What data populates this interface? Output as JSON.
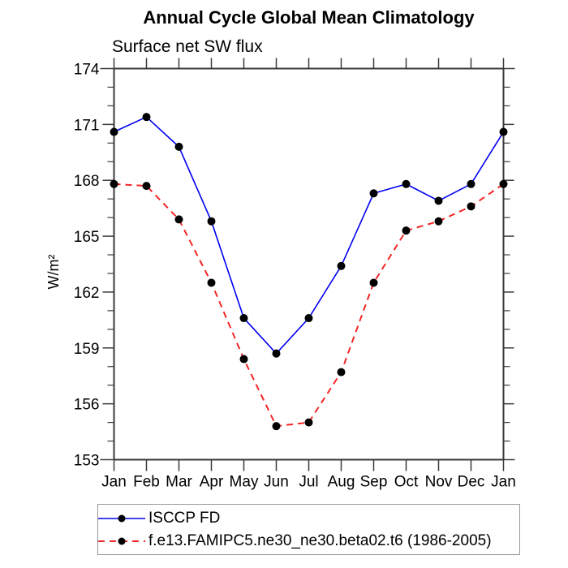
{
  "title": "Annual Cycle Global Mean Climatology",
  "subtitle": "Surface net SW flux",
  "chart_data": {
    "type": "line",
    "title": "Annual Cycle Global Mean Climatology",
    "subtitle": "Surface net SW flux",
    "ylabel": "W/m²",
    "xlabel": "",
    "categories": [
      "Jan",
      "Feb",
      "Mar",
      "Apr",
      "May",
      "Jun",
      "Jul",
      "Aug",
      "Sep",
      "Oct",
      "Nov",
      "Dec",
      "Jan"
    ],
    "ylim": [
      153,
      174
    ],
    "yticks": [
      153,
      156,
      159,
      162,
      165,
      168,
      171,
      174
    ],
    "yminor_step": 1,
    "grid": false,
    "legend_position": "bottom",
    "series": [
      {
        "name": "ISCCP FD",
        "color": "#0000f0",
        "line_style": "solid",
        "line_width": 1.6,
        "marker": "circle",
        "marker_color": "#000000",
        "values": [
          170.6,
          171.4,
          169.8,
          165.8,
          160.6,
          158.7,
          160.6,
          163.4,
          167.3,
          167.8,
          166.9,
          167.8,
          170.6
        ]
      },
      {
        "name": "f.e13.FAMIPC5.ne30_ne30.beta02.t6 (1986-2005)",
        "color": "#f42525",
        "line_style": "dashed",
        "line_width": 2,
        "marker": "circle",
        "marker_color": "#000000",
        "values": [
          167.8,
          167.7,
          165.9,
          162.5,
          158.4,
          154.8,
          155,
          157.7,
          162.5,
          165.3,
          165.8,
          166.6,
          167.8
        ]
      }
    ]
  }
}
